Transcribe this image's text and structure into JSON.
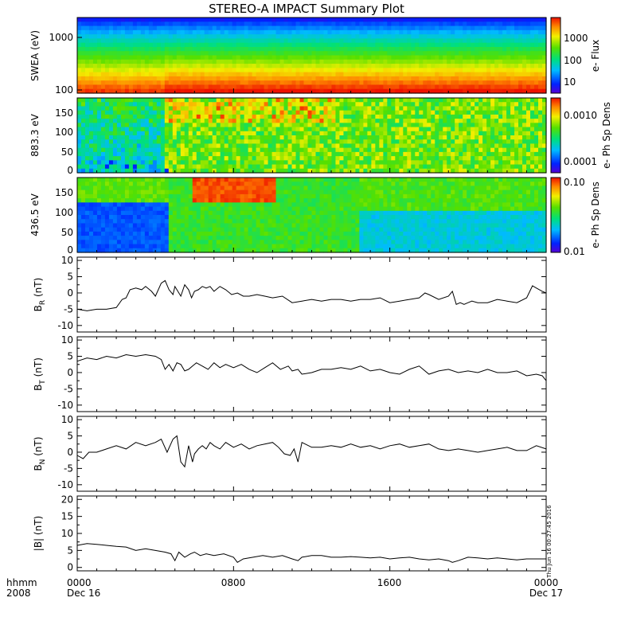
{
  "title": "STEREO-A IMPACT Summary Plot",
  "footer": {
    "row1_label": "hhmm",
    "row2_label": "2008",
    "x_tick_labels": [
      "0000",
      "0800",
      "1600",
      "0000"
    ],
    "x_date_labels": [
      "Dec 16",
      "Dec 17"
    ]
  },
  "timestamp": "Thu Jun 16 00:27:45 2016",
  "colors": {
    "line": "#000000",
    "frame": "#000000",
    "background": "#ffffff"
  },
  "chart_data": [
    {
      "type": "heatmap",
      "panel": "swea",
      "ylabel": "SWEA (eV)",
      "y_scale": "log",
      "ylim": [
        95,
        2000
      ],
      "y_tick_labels": [
        "1000",
        "100"
      ],
      "y_tick_values": [
        1000,
        100
      ],
      "colorbar_label": "e- Flux",
      "colorbar_scale": "log",
      "colorbar_tick_labels": [
        "1000",
        "100",
        "10"
      ],
      "colorbar_tick_values": [
        1000,
        100,
        10
      ],
      "colorbar_range": [
        3,
        10000
      ],
      "xlim_hours": [
        0,
        24
      ]
    },
    {
      "type": "heatmap",
      "panel": "pad_883",
      "ylabel": "883.3 eV",
      "ylim": [
        0,
        180
      ],
      "y_tick_labels": [
        "150",
        "100",
        "50",
        "0"
      ],
      "y_tick_values": [
        150,
        100,
        50,
        0
      ],
      "colorbar_label": "e- Ph Sp Dens",
      "colorbar_scale": "log",
      "colorbar_tick_labels": [
        "0.0010",
        "0.0001"
      ],
      "colorbar_tick_values": [
        0.001,
        0.0001
      ],
      "colorbar_range": [
        5e-05,
        0.002
      ],
      "xlim_hours": [
        0,
        24
      ]
    },
    {
      "type": "heatmap",
      "panel": "pad_436",
      "ylabel": "436.5 eV",
      "ylim": [
        0,
        180
      ],
      "y_tick_labels": [
        "150",
        "100",
        "50",
        "0"
      ],
      "y_tick_values": [
        150,
        100,
        50,
        0
      ],
      "colorbar_label": "e- Ph Sp Dens",
      "colorbar_scale": "log",
      "colorbar_tick_labels": [
        "0.10",
        "0.01"
      ],
      "colorbar_tick_values": [
        0.1,
        0.01
      ],
      "colorbar_range": [
        0.01,
        0.11
      ],
      "xlim_hours": [
        0,
        24
      ]
    },
    {
      "type": "line",
      "panel": "br",
      "ylabel": "B",
      "ylabel_sub": "R",
      "ylabel_unit": "(nT)",
      "ylim": [
        -12,
        11
      ],
      "y_tick_labels": [
        "10",
        "5",
        "0",
        "-5",
        "-10"
      ],
      "y_tick_values": [
        10,
        5,
        0,
        -5,
        -10
      ],
      "xlim_hours": [
        0,
        24
      ],
      "x": [
        0,
        0.5,
        1,
        1.5,
        2,
        2.3,
        2.5,
        2.7,
        3,
        3.3,
        3.5,
        3.8,
        4,
        4.3,
        4.5,
        4.7,
        4.9,
        5.0,
        5.15,
        5.3,
        5.5,
        5.7,
        5.85,
        6,
        6.2,
        6.4,
        6.6,
        6.8,
        7,
        7.3,
        7.6,
        7.9,
        8.2,
        8.5,
        8.8,
        9.2,
        9.6,
        10,
        10.5,
        11,
        11.5,
        12,
        12.5,
        13,
        13.5,
        14,
        14.5,
        15,
        15.5,
        16,
        16.5,
        17,
        17.5,
        17.8,
        18,
        18.5,
        19,
        19.2,
        19.4,
        19.6,
        19.8,
        20,
        20.2,
        20.5,
        21,
        21.5,
        22,
        22.5,
        23,
        23.3,
        23.5,
        23.8,
        24
      ],
      "values": [
        -5,
        -5.5,
        -5,
        -5,
        -4.5,
        -2,
        -1.5,
        1,
        1.5,
        1,
        2,
        0.5,
        -1,
        3,
        3.8,
        1,
        -0.5,
        2,
        0.5,
        -1,
        2.5,
        1,
        -1.5,
        0.5,
        1,
        2,
        1.5,
        2,
        0.5,
        2,
        1,
        -0.5,
        0,
        -1,
        -1,
        -0.5,
        -1,
        -1.5,
        -1,
        -3,
        -2.5,
        -2,
        -2.5,
        -2,
        -2,
        -2.5,
        -2,
        -2,
        -1.5,
        -3,
        -2.5,
        -2,
        -1.5,
        0,
        -0.5,
        -2,
        -1,
        0.5,
        -3.5,
        -3,
        -3.5,
        -3,
        -2.5,
        -3,
        -3,
        -2,
        -2.5,
        -3,
        -1.5,
        2.2,
        1.5,
        0.5,
        0
      ]
    },
    {
      "type": "line",
      "panel": "bt",
      "ylabel": "B",
      "ylabel_sub": "T",
      "ylabel_unit": "(nT)",
      "ylim": [
        -12,
        11
      ],
      "y_tick_labels": [
        "10",
        "5",
        "0",
        "-5",
        "-10"
      ],
      "y_tick_values": [
        10,
        5,
        0,
        -5,
        -10
      ],
      "xlim_hours": [
        0,
        24
      ],
      "x": [
        0,
        0.5,
        1,
        1.5,
        2,
        2.5,
        3,
        3.5,
        4,
        4.3,
        4.5,
        4.7,
        4.9,
        5.1,
        5.3,
        5.5,
        5.7,
        5.9,
        6.1,
        6.4,
        6.7,
        7,
        7.3,
        7.6,
        8,
        8.4,
        8.8,
        9.2,
        9.6,
        10,
        10.4,
        10.8,
        11,
        11.3,
        11.5,
        12,
        12.5,
        13,
        13.5,
        14,
        14.5,
        15,
        15.5,
        16,
        16.5,
        17,
        17.5,
        18,
        18.5,
        19,
        19.5,
        20,
        20.5,
        21,
        21.5,
        22,
        22.5,
        23,
        23.5,
        23.8,
        24
      ],
      "values": [
        3.5,
        4.5,
        4,
        5,
        4.5,
        5.5,
        5,
        5.5,
        5,
        4,
        1,
        2.5,
        0.5,
        3,
        2.5,
        0.5,
        1,
        2,
        3,
        2,
        1,
        3,
        1.5,
        2.5,
        1.5,
        2.5,
        1,
        0,
        1.5,
        3,
        1,
        2,
        0.5,
        1,
        -0.5,
        0,
        1,
        1,
        1.5,
        1,
        2,
        0.5,
        1,
        0,
        -0.5,
        1,
        2,
        -0.5,
        0.5,
        1,
        0,
        0.5,
        0,
        1,
        0,
        0,
        0.5,
        -1,
        -0.5,
        -1,
        -2.5
      ]
    },
    {
      "type": "line",
      "panel": "bn",
      "ylabel": "B",
      "ylabel_sub": "N",
      "ylabel_unit": "(nT)",
      "ylim": [
        -12,
        11
      ],
      "y_tick_labels": [
        "10",
        "5",
        "0",
        "-5",
        "-10"
      ],
      "y_tick_values": [
        10,
        5,
        0,
        -5,
        -10
      ],
      "xlim_hours": [
        0,
        24
      ],
      "x": [
        0,
        0.3,
        0.6,
        1,
        1.5,
        2,
        2.5,
        3,
        3.5,
        4,
        4.3,
        4.6,
        4.9,
        5.1,
        5.3,
        5.5,
        5.7,
        5.9,
        6.0,
        6.2,
        6.4,
        6.6,
        6.8,
        7,
        7.3,
        7.6,
        8,
        8.4,
        8.8,
        9.2,
        9.6,
        10,
        10.3,
        10.6,
        10.9,
        11.1,
        11.3,
        11.5,
        12,
        12.5,
        13,
        13.5,
        14,
        14.5,
        15,
        15.5,
        16,
        16.5,
        17,
        17.5,
        18,
        18.5,
        19,
        19.5,
        20,
        20.5,
        21,
        21.5,
        22,
        22.5,
        23,
        23.5,
        24
      ],
      "values": [
        -1,
        -2,
        0,
        0,
        1,
        2,
        1,
        3,
        2,
        3,
        4,
        0,
        4,
        5,
        -3,
        -4.5,
        2,
        -3,
        -0.5,
        1,
        2,
        1,
        3,
        2,
        1,
        3,
        1.5,
        2.5,
        1,
        2,
        2.5,
        3,
        1.5,
        -0.5,
        -1,
        1,
        -3,
        3,
        1.5,
        1.5,
        2,
        1.5,
        2.5,
        1.5,
        2,
        1,
        2,
        2.5,
        1.5,
        2,
        2.5,
        1,
        0.5,
        1,
        0.5,
        0,
        0.5,
        1,
        1.5,
        0.5,
        0.5,
        2,
        1
      ]
    },
    {
      "type": "line",
      "panel": "bmag",
      "ylabel": "|B| (nT)",
      "ylim": [
        -1,
        21
      ],
      "y_tick_labels": [
        "20",
        "15",
        "10",
        "5",
        "0"
      ],
      "y_tick_values": [
        20,
        15,
        10,
        5,
        0
      ],
      "xlim_hours": [
        0,
        24
      ],
      "x": [
        0,
        0.5,
        1,
        1.5,
        2,
        2.5,
        3,
        3.5,
        4,
        4.5,
        4.8,
        5.0,
        5.2,
        5.5,
        5.8,
        6.0,
        6.3,
        6.6,
        7,
        7.5,
        8,
        8.2,
        8.5,
        9,
        9.5,
        10,
        10.5,
        11,
        11.3,
        11.5,
        12,
        12.5,
        13,
        13.5,
        14,
        14.5,
        15,
        15.5,
        16,
        16.5,
        17,
        17.5,
        18,
        18.5,
        19,
        19.2,
        19.5,
        20,
        20.5,
        21,
        21.5,
        22,
        22.5,
        23,
        23.5,
        24
      ],
      "values": [
        6.5,
        7,
        6.8,
        6.5,
        6.2,
        6,
        5,
        5.5,
        5,
        4.5,
        4,
        2,
        4.5,
        3,
        4,
        4.5,
        3.5,
        4,
        3.5,
        4,
        3,
        1.5,
        2.5,
        3,
        3.5,
        3,
        3.5,
        2.5,
        2,
        3,
        3.5,
        3.5,
        3,
        3,
        3.2,
        3,
        2.8,
        3,
        2.5,
        2.8,
        3,
        2.5,
        2.2,
        2.5,
        2,
        1.5,
        2,
        3,
        2.8,
        2.5,
        2.8,
        2.5,
        2.2,
        2.5,
        2.5,
        2.5
      ]
    }
  ]
}
